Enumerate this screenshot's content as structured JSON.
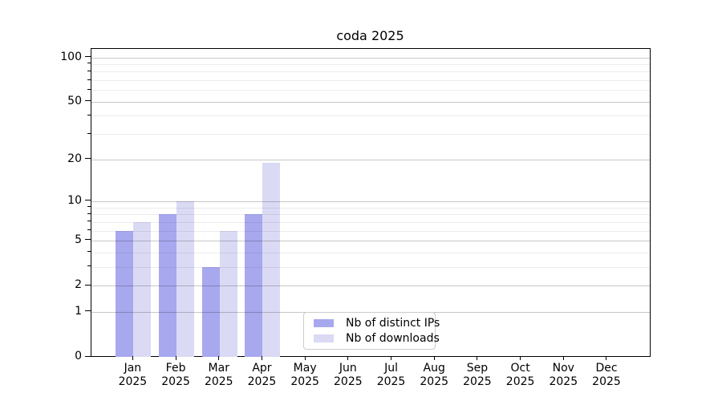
{
  "window": {
    "background": "#ffffff"
  },
  "chart_data": {
    "type": "bar",
    "title": "coda 2025",
    "year_label": "2025",
    "categories": [
      "Jan",
      "Feb",
      "Mar",
      "Apr",
      "May",
      "Jun",
      "Jul",
      "Aug",
      "Sep",
      "Oct",
      "Nov",
      "Dec"
    ],
    "series": [
      {
        "name": "Nb of distinct IPs",
        "color": "#a8a8ef",
        "values": [
          6,
          8,
          3,
          8,
          0,
          0,
          0,
          0,
          0,
          0,
          0,
          0
        ]
      },
      {
        "name": "Nb of downloads",
        "color": "#dadaf5",
        "values": [
          7,
          10,
          6,
          19,
          0,
          0,
          0,
          0,
          0,
          0,
          0,
          0
        ]
      }
    ],
    "xlabel": "",
    "ylabel": "",
    "y_axis": {
      "scale": "log1p",
      "major_ticks": [
        0,
        1,
        2,
        5,
        10,
        20,
        50,
        100
      ],
      "minor_gridlines": [
        3,
        4,
        6,
        7,
        8,
        9,
        30,
        40,
        60,
        70,
        80,
        90
      ],
      "ylim": [
        0,
        113
      ]
    },
    "grid": {
      "major_color": "#00000038",
      "minor_color": "#00000013"
    },
    "legend": {
      "position": "inside-bottom-center-left",
      "border_color": "#cccccc"
    }
  }
}
